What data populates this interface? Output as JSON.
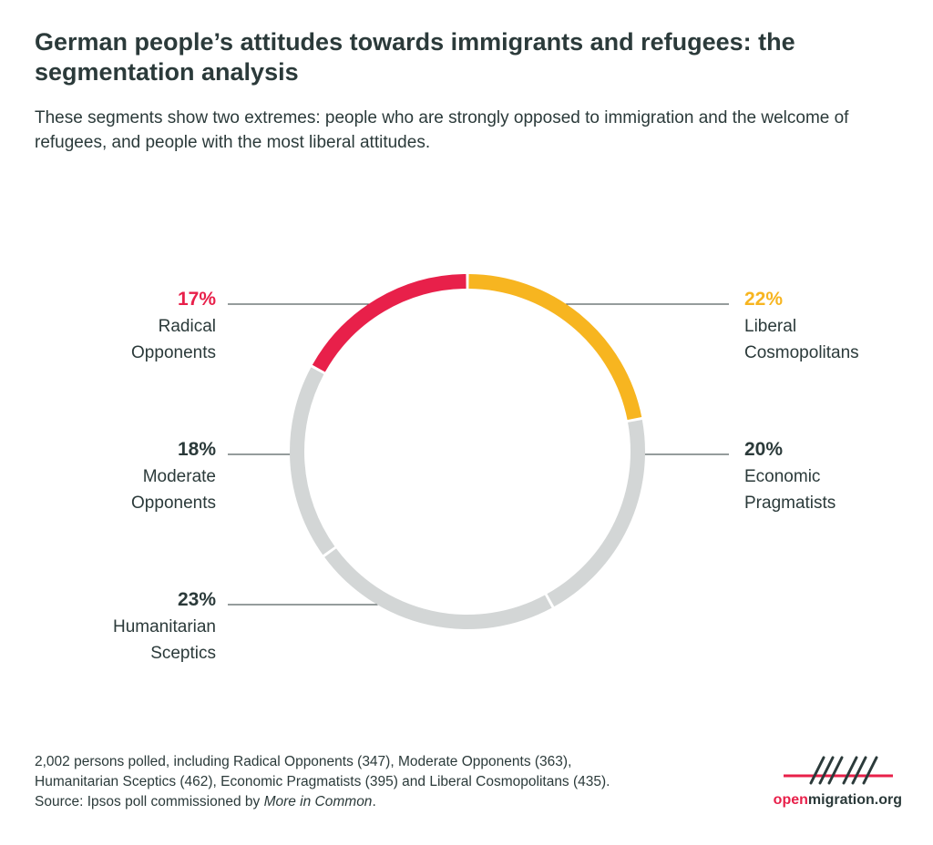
{
  "title": "German people’s attitudes towards immigrants and refugees: the segmentation analysis",
  "subtitle": "These segments show two extremes: people who are strongly opposed to immigration and the welcome of refugees, and people with the most liberal attitudes.",
  "colors": {
    "radical": "#e8204a",
    "liberal": "#f7b520",
    "neutral": "#d3d6d6",
    "text": "#2b3a3a",
    "line": "#2b3a3a"
  },
  "chart_data": {
    "type": "pie",
    "style": "donut-ring",
    "start": "top, clockwise",
    "segments": [
      {
        "name": "Liberal Cosmopolitans",
        "value": 22,
        "label_pct": "22%",
        "label_lines": [
          "Liberal",
          "Cosmopolitans"
        ],
        "color": "#f7b520",
        "side": "right"
      },
      {
        "name": "Economic Pragmatists",
        "value": 20,
        "label_pct": "20%",
        "label_lines": [
          "Economic",
          "Pragmatists"
        ],
        "color": "#d3d6d6",
        "side": "right"
      },
      {
        "name": "Humanitarian Sceptics",
        "value": 23,
        "label_pct": "23%",
        "label_lines": [
          "Humanitarian",
          "Sceptics"
        ],
        "color": "#d3d6d6",
        "side": "left"
      },
      {
        "name": "Moderate Opponents",
        "value": 18,
        "label_pct": "18%",
        "label_lines": [
          "Moderate",
          "Opponents"
        ],
        "color": "#d3d6d6",
        "side": "left"
      },
      {
        "name": "Radical Opponents",
        "value": 17,
        "label_pct": "17%",
        "label_lines": [
          "Radical",
          "Opponents"
        ],
        "color": "#e8204a",
        "side": "left"
      }
    ]
  },
  "footnote": {
    "line1": "2,002 persons polled, including Radical Opponents (347), Moderate Opponents (363),",
    "line2": "Humanitarian Sceptics (462), Economic Pragmatists (395) and Liberal Cosmopolitans (435).",
    "line3_prefix": "Source: Ipsos poll commissioned by ",
    "line3_em": "More in Common",
    "line3_suffix": "."
  },
  "logo": {
    "accent_text": "open",
    "rest_text": "migration.org"
  }
}
